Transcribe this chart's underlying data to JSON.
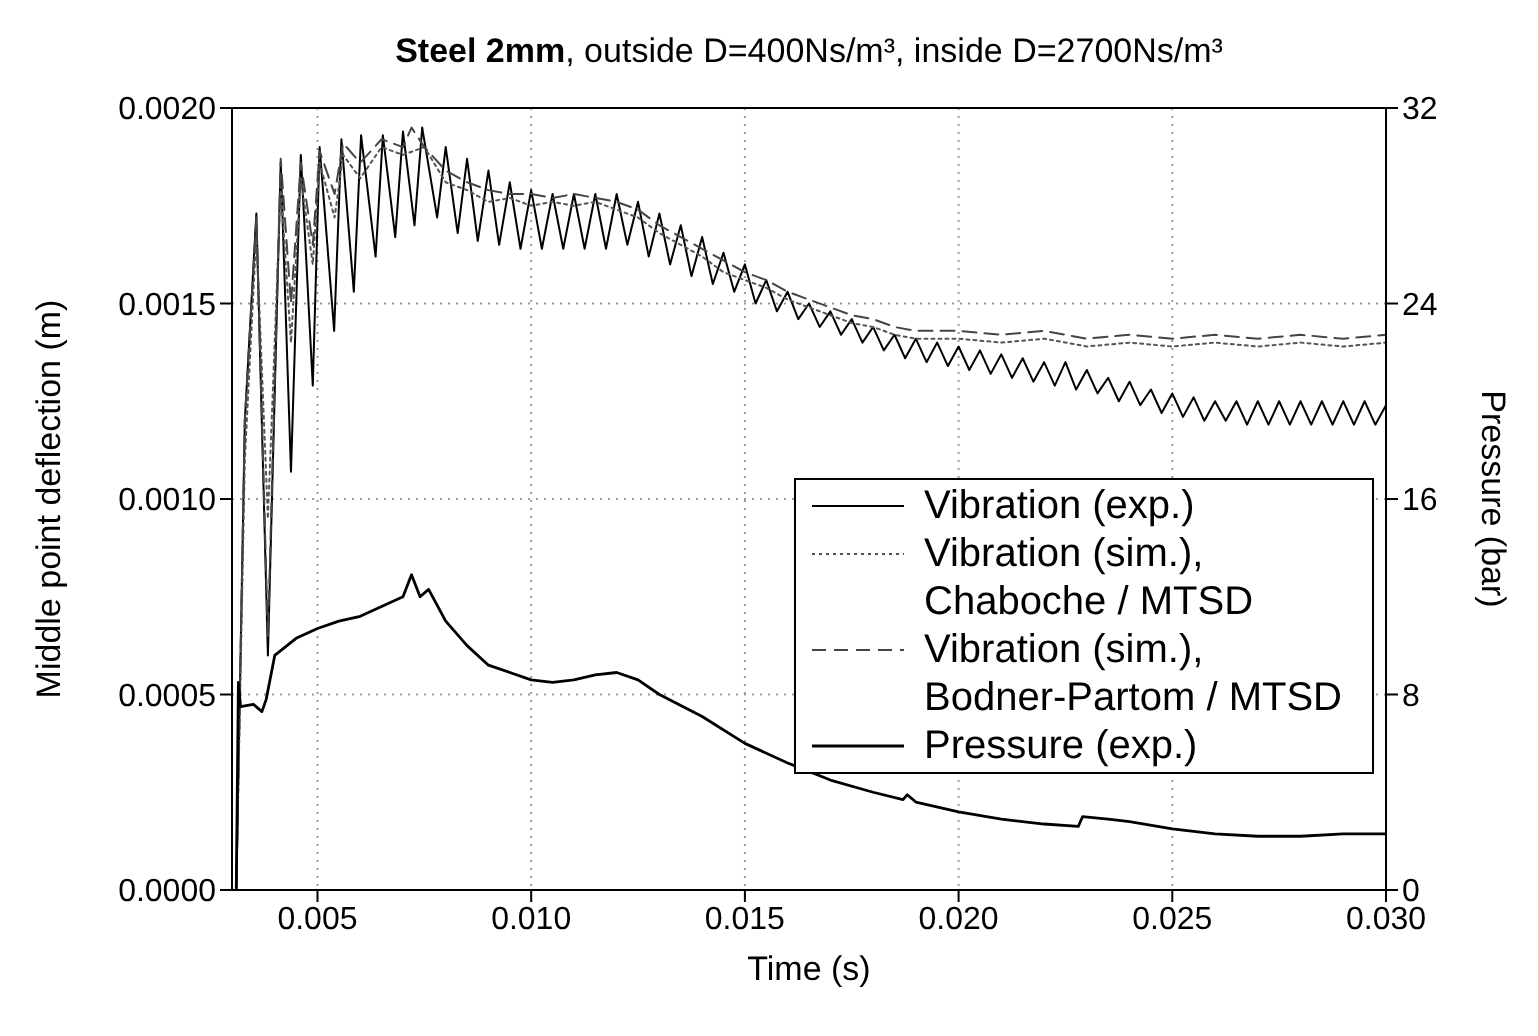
{
  "chart_data": {
    "type": "line",
    "title": "Steel 2mm, outside D=400Ns/m³, inside D=2700Ns/m³",
    "xlabel": "Time (s)",
    "ylabel": "Middle point deflection (m)",
    "y2label": "Pressure (bar)",
    "xlim": [
      0.003,
      0.03
    ],
    "xticks": [
      {
        "value": 0.005,
        "label": "0.005"
      },
      {
        "value": 0.01,
        "label": "0.010"
      },
      {
        "value": 0.015,
        "label": "0.015"
      },
      {
        "value": 0.02,
        "label": "0.020"
      },
      {
        "value": 0.025,
        "label": "0.025"
      },
      {
        "value": 0.03,
        "label": "0.030"
      }
    ],
    "ylim": [
      0,
      0.002
    ],
    "yticks": [
      {
        "value": 0,
        "label": "0.0000"
      },
      {
        "value": 0.0005,
        "label": "0.0005"
      },
      {
        "value": 0.001,
        "label": "0.0010"
      },
      {
        "value": 0.0015,
        "label": "0.0015"
      },
      {
        "value": 0.002,
        "label": "0.0020"
      }
    ],
    "y2lim": [
      0,
      32
    ],
    "y2ticks": [
      0,
      8,
      16,
      24,
      32
    ],
    "grid": true,
    "legend": "right",
    "series": [
      {
        "name": "Vibration (exp.)",
        "color": "#000000",
        "line_style": "solid",
        "x": [
          0.0031,
          0.0033,
          0.00357,
          0.00384,
          0.00414,
          0.00438,
          0.00461,
          0.00489,
          0.00505,
          0.00539,
          0.00556,
          0.00585,
          0.00602,
          0.00636,
          0.00653,
          0.00682,
          0.007,
          0.00727,
          0.00745,
          0.0078,
          0.008,
          0.00828,
          0.0085,
          0.00875,
          0.009,
          0.00925,
          0.0095,
          0.00975,
          0.01,
          0.01025,
          0.0105,
          0.01075,
          0.011,
          0.01125,
          0.0115,
          0.01175,
          0.012,
          0.01225,
          0.0125,
          0.01275,
          0.013,
          0.01325,
          0.0135,
          0.01375,
          0.014,
          0.01425,
          0.0145,
          0.01475,
          0.015,
          0.01525,
          0.0155,
          0.01575,
          0.016,
          0.01625,
          0.0165,
          0.01675,
          0.017,
          0.01725,
          0.0175,
          0.01775,
          0.018,
          0.01825,
          0.0185,
          0.01875,
          0.019,
          0.01925,
          0.0195,
          0.01975,
          0.02,
          0.02025,
          0.0205,
          0.02075,
          0.021,
          0.02125,
          0.0215,
          0.02175,
          0.022,
          0.02225,
          0.0225,
          0.02275,
          0.023,
          0.02325,
          0.0235,
          0.02375,
          0.024,
          0.02425,
          0.0245,
          0.02475,
          0.025,
          0.02525,
          0.0255,
          0.02575,
          0.026,
          0.02625,
          0.0265,
          0.02675,
          0.027,
          0.02725,
          0.0275,
          0.02775,
          0.028,
          0.02825,
          0.0285,
          0.02875,
          0.029,
          0.02925,
          0.0295,
          0.02975,
          0.03
        ],
        "values": [
          0,
          0.0012,
          0.00173,
          0.0006,
          0.00186,
          0.00107,
          0.00188,
          0.00129,
          0.0019,
          0.00143,
          0.00192,
          0.00153,
          0.00193,
          0.00162,
          0.00193,
          0.00167,
          0.00194,
          0.0017,
          0.00195,
          0.00172,
          0.0019,
          0.00168,
          0.00187,
          0.00166,
          0.00184,
          0.00165,
          0.00181,
          0.00164,
          0.00179,
          0.00164,
          0.00178,
          0.00164,
          0.00178,
          0.00164,
          0.00178,
          0.00164,
          0.00178,
          0.00165,
          0.00176,
          0.00162,
          0.00173,
          0.0016,
          0.0017,
          0.00157,
          0.00167,
          0.00155,
          0.00163,
          0.00153,
          0.0016,
          0.0015,
          0.00156,
          0.00148,
          0.00153,
          0.00146,
          0.0015,
          0.00144,
          0.00148,
          0.00142,
          0.00146,
          0.0014,
          0.00144,
          0.00138,
          0.00142,
          0.00136,
          0.00141,
          0.00135,
          0.0014,
          0.00134,
          0.00139,
          0.00133,
          0.00138,
          0.00132,
          0.00137,
          0.00131,
          0.00136,
          0.0013,
          0.00135,
          0.00129,
          0.00135,
          0.00128,
          0.00133,
          0.00127,
          0.00131,
          0.00125,
          0.0013,
          0.00124,
          0.00128,
          0.00122,
          0.00127,
          0.00121,
          0.00126,
          0.0012,
          0.00125,
          0.0012,
          0.00125,
          0.00119,
          0.00125,
          0.00119,
          0.00125,
          0.00119,
          0.00125,
          0.00119,
          0.00125,
          0.00119,
          0.00125,
          0.00119,
          0.00125,
          0.00119,
          0.00124
        ]
      },
      {
        "name": "Vibration (sim.), Chaboche / MTSD",
        "color": "#555555",
        "line_style": "dotted",
        "x": [
          0.0031,
          0.0033,
          0.00357,
          0.00384,
          0.00414,
          0.00438,
          0.00461,
          0.00489,
          0.00505,
          0.0054,
          0.0056,
          0.006,
          0.0065,
          0.007,
          0.0075,
          0.008,
          0.0085,
          0.009,
          0.0095,
          0.01,
          0.0105,
          0.011,
          0.0115,
          0.012,
          0.0125,
          0.013,
          0.0135,
          0.014,
          0.0145,
          0.015,
          0.0155,
          0.016,
          0.0165,
          0.017,
          0.0175,
          0.018,
          0.0185,
          0.019,
          0.02,
          0.021,
          0.022,
          0.023,
          0.024,
          0.025,
          0.026,
          0.027,
          0.028,
          0.029,
          0.03
        ],
        "values": [
          0,
          0.0011,
          0.00168,
          0.00095,
          0.0018,
          0.0014,
          0.00182,
          0.0016,
          0.00186,
          0.00172,
          0.00188,
          0.00182,
          0.0019,
          0.00188,
          0.0019,
          0.00181,
          0.00179,
          0.00176,
          0.00177,
          0.00175,
          0.00176,
          0.00175,
          0.00176,
          0.00174,
          0.00172,
          0.00168,
          0.00165,
          0.00162,
          0.00158,
          0.00156,
          0.00154,
          0.00151,
          0.00149,
          0.00147,
          0.00145,
          0.00144,
          0.00142,
          0.00141,
          0.00141,
          0.0014,
          0.00141,
          0.00139,
          0.0014,
          0.00139,
          0.0014,
          0.00139,
          0.0014,
          0.00139,
          0.0014
        ]
      },
      {
        "name": "Vibration (sim.), Bodner-Partom / MTSD",
        "color": "#444444",
        "line_style": "dashed",
        "x": [
          0.0031,
          0.0033,
          0.00357,
          0.00384,
          0.00414,
          0.00438,
          0.00461,
          0.00489,
          0.00505,
          0.0054,
          0.0056,
          0.006,
          0.0065,
          0.007,
          0.0072,
          0.0075,
          0.008,
          0.0085,
          0.009,
          0.0095,
          0.01,
          0.0105,
          0.011,
          0.0115,
          0.012,
          0.0125,
          0.013,
          0.0135,
          0.014,
          0.0145,
          0.015,
          0.0155,
          0.016,
          0.0165,
          0.017,
          0.0175,
          0.018,
          0.0185,
          0.019,
          0.02,
          0.021,
          0.022,
          0.023,
          0.024,
          0.025,
          0.026,
          0.027,
          0.028,
          0.029,
          0.03
        ],
        "values": [
          0,
          0.0012,
          0.00172,
          0.00065,
          0.00187,
          0.0015,
          0.00186,
          0.00165,
          0.00189,
          0.00178,
          0.00191,
          0.00186,
          0.00192,
          0.0019,
          0.00195,
          0.0019,
          0.00184,
          0.00181,
          0.00179,
          0.00178,
          0.00178,
          0.00177,
          0.00178,
          0.00177,
          0.00176,
          0.00174,
          0.0017,
          0.00167,
          0.00164,
          0.00161,
          0.00158,
          0.00156,
          0.00153,
          0.00151,
          0.00149,
          0.00147,
          0.00146,
          0.00144,
          0.00143,
          0.00143,
          0.00142,
          0.00143,
          0.00141,
          0.00142,
          0.00141,
          0.00142,
          0.00141,
          0.00142,
          0.00141,
          0.00142
        ]
      },
      {
        "name": "Pressure (exp.)",
        "color": "#000000",
        "line_style": "solid",
        "axis": "y2",
        "x": [
          0.0031,
          0.00315,
          0.0032,
          0.0035,
          0.0037,
          0.0038,
          0.004,
          0.0045,
          0.005,
          0.0055,
          0.006,
          0.0065,
          0.007,
          0.0072,
          0.0074,
          0.0076,
          0.008,
          0.0085,
          0.009,
          0.0095,
          0.01,
          0.0105,
          0.011,
          0.0115,
          0.012,
          0.0125,
          0.013,
          0.014,
          0.015,
          0.016,
          0.017,
          0.018,
          0.0187,
          0.0188,
          0.019,
          0.02,
          0.021,
          0.022,
          0.0228,
          0.0229,
          0.0235,
          0.024,
          0.025,
          0.026,
          0.027,
          0.028,
          0.029,
          0.03
        ],
        "values": [
          0,
          8.5,
          7.5,
          7.6,
          7.3,
          7.8,
          9.6,
          10.3,
          10.7,
          11.0,
          11.2,
          11.6,
          12.0,
          12.9,
          12.0,
          12.3,
          11.0,
          10.0,
          9.2,
          8.9,
          8.6,
          8.5,
          8.6,
          8.8,
          8.9,
          8.6,
          8.0,
          7.1,
          6.0,
          5.2,
          4.5,
          4.0,
          3.7,
          3.9,
          3.6,
          3.2,
          2.9,
          2.7,
          2.6,
          3.0,
          2.9,
          2.8,
          2.5,
          2.3,
          2.2,
          2.2,
          2.3,
          2.3
        ]
      }
    ]
  }
}
